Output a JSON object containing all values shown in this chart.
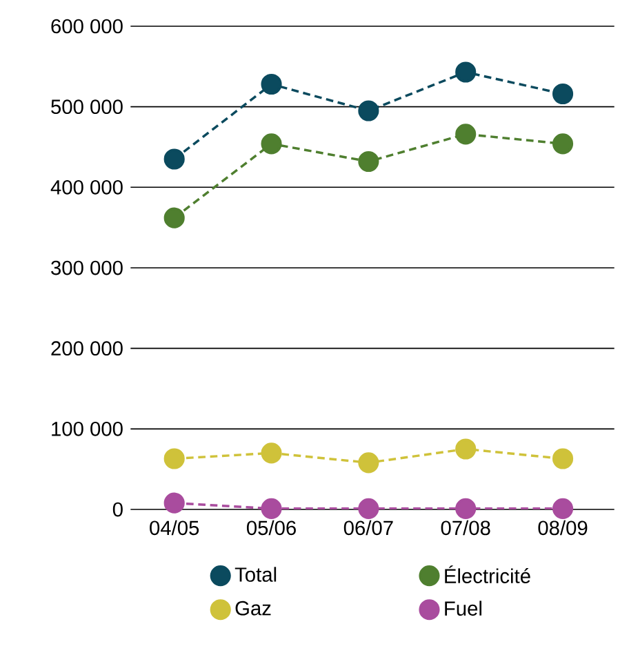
{
  "chart_data": {
    "type": "line",
    "categories": [
      "04/05",
      "05/06",
      "06/07",
      "07/08",
      "08/09"
    ],
    "series": [
      {
        "name": "Total",
        "color": "#0b4a5e",
        "values": [
          435000,
          528000,
          495000,
          543000,
          516000
        ]
      },
      {
        "name": "Électricité",
        "color": "#4f7f2f",
        "values": [
          362000,
          454000,
          432000,
          466000,
          454000
        ]
      },
      {
        "name": "Gaz",
        "color": "#cfc23a",
        "values": [
          63000,
          70000,
          58000,
          75000,
          63000
        ]
      },
      {
        "name": "Fuel",
        "color": "#a94c9e",
        "values": [
          8000,
          1000,
          1000,
          1000,
          1000
        ]
      }
    ],
    "ylim": [
      0,
      600000
    ],
    "yticks": [
      {
        "value": 0,
        "label": "0"
      },
      {
        "value": 100000,
        "label": "100 000"
      },
      {
        "value": 200000,
        "label": "200 000"
      },
      {
        "value": 300000,
        "label": "300 000"
      },
      {
        "value": 400000,
        "label": "400 000"
      },
      {
        "value": 500000,
        "label": "500 000"
      },
      {
        "value": 600000,
        "label": "600 000"
      }
    ],
    "grid": "y",
    "legend": "bottom",
    "marker": "circle",
    "line_style": "dashed"
  }
}
